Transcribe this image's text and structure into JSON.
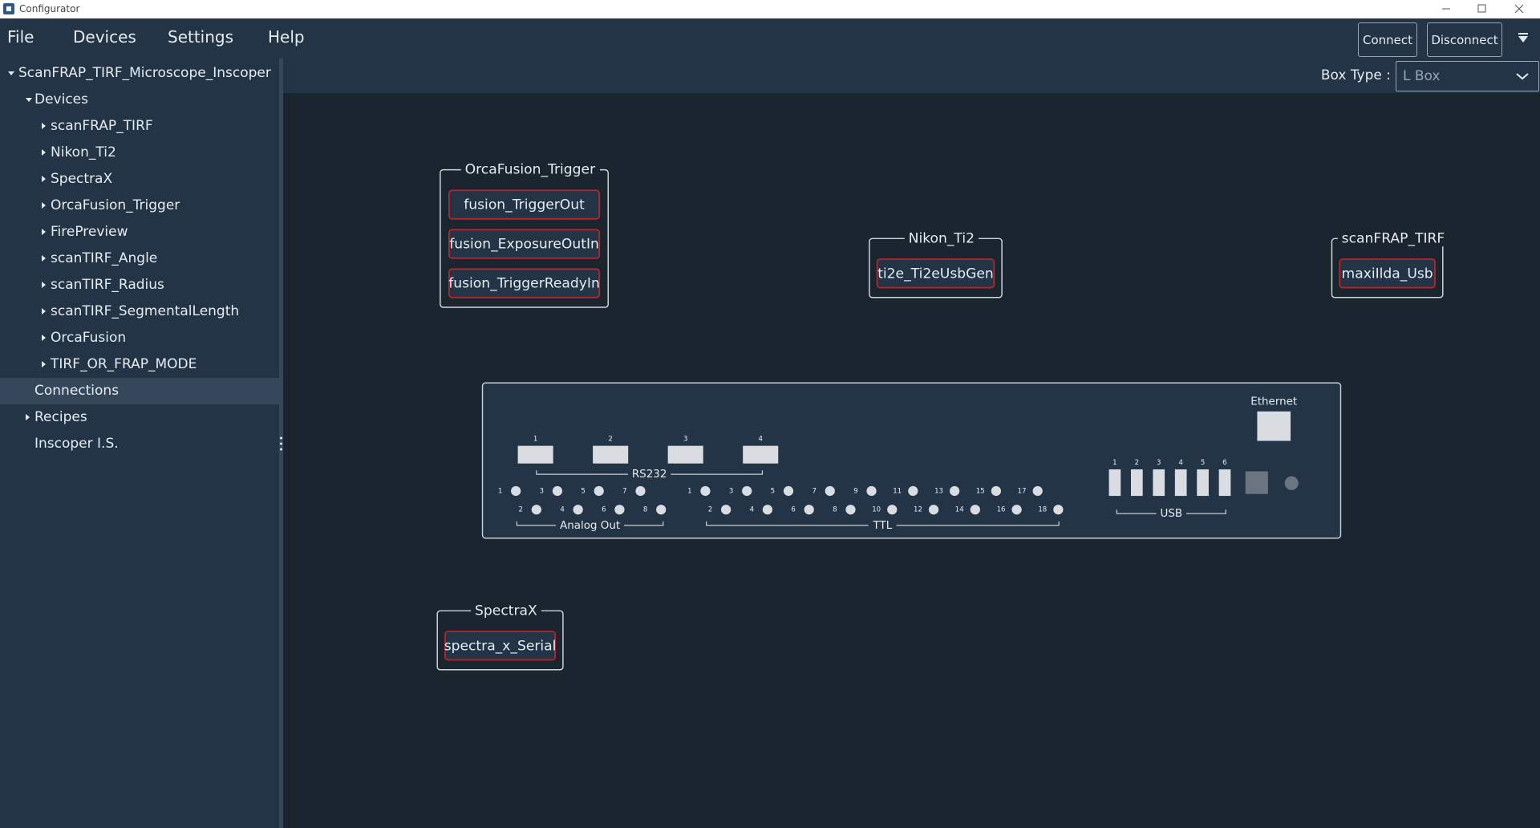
{
  "window": {
    "title": "Configurator"
  },
  "menu": [
    "File",
    "Devices",
    "Settings",
    "Help"
  ],
  "toolbar": {
    "connect": "Connect",
    "disconnect": "Disconnect",
    "box_type_label": "Box Type :",
    "box_type_value": "L Box"
  },
  "sidebar": {
    "root": "ScanFRAP_TIRF_Microscope_Inscoper",
    "devices": {
      "label": "Devices",
      "items": [
        "scanFRAP_TIRF",
        "Nikon_Ti2",
        "SpectraX",
        "OrcaFusion_Trigger",
        "FirePreview",
        "scanTIRF_Angle",
        "scanTIRF_Radius",
        "scanTIRF_SegmentalLength",
        "OrcaFusion",
        "TIRF_OR_FRAP_MODE"
      ]
    },
    "connections": "Connections",
    "recipes": "Recipes",
    "inscoper": "Inscoper I.S."
  },
  "canvas": {
    "groups": [
      {
        "title": "OrcaFusion_Trigger",
        "ports": [
          "fusion_TriggerOut",
          "fusion_ExposureOutIn",
          "fusion_TriggerReadyIn"
        ]
      },
      {
        "title": "Nikon_Ti2",
        "ports": [
          "ti2e_Ti2eUsbGen"
        ]
      },
      {
        "title": "scanFRAP_TIRF",
        "ports": [
          "maxiIlda_Usb"
        ]
      },
      {
        "title": "SpectraX",
        "ports": [
          "spectra_x_Serial"
        ]
      }
    ],
    "box_panel": {
      "ethernet": "Ethernet",
      "rs232": {
        "label": "RS232",
        "ports": [
          "1",
          "2",
          "3",
          "4"
        ]
      },
      "analog_out": {
        "label": "Analog Out",
        "ports": [
          "1",
          "2",
          "3",
          "4",
          "5",
          "6",
          "7",
          "8"
        ]
      },
      "ttl": {
        "label": "TTL",
        "ports": [
          "1",
          "2",
          "3",
          "4",
          "5",
          "6",
          "7",
          "8",
          "9",
          "10",
          "11",
          "12",
          "13",
          "14",
          "15",
          "16",
          "17",
          "18"
        ]
      },
      "usb": {
        "label": "USB",
        "ports": [
          "1",
          "2",
          "3",
          "4",
          "5",
          "6"
        ]
      }
    }
  }
}
